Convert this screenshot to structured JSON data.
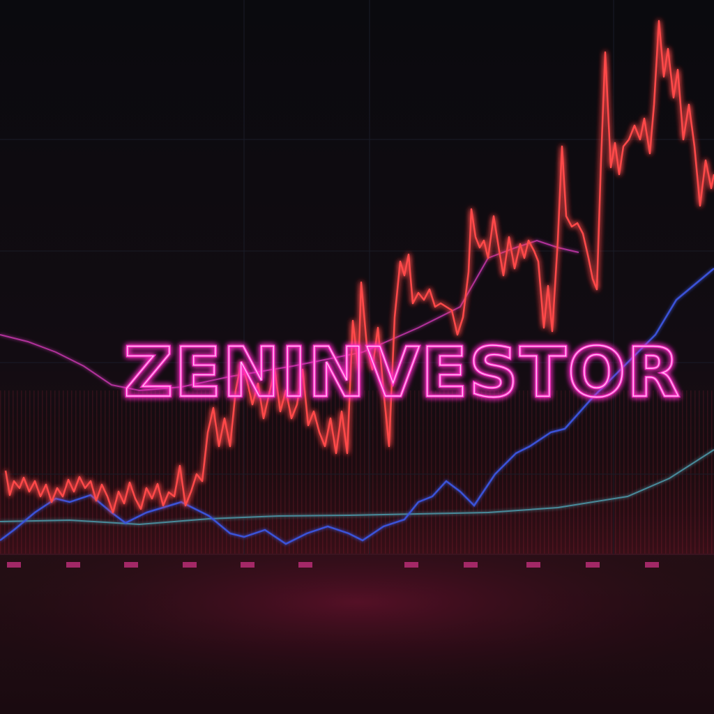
{
  "title": "ZENINVESTOR"
}
